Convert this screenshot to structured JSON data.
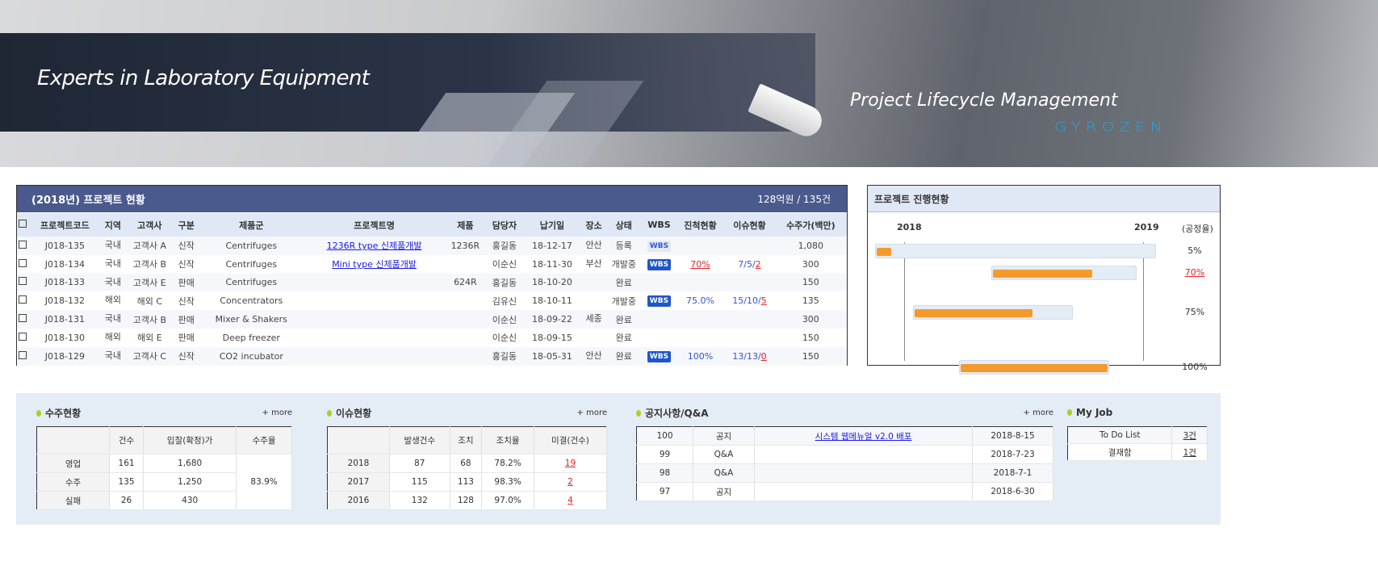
{
  "banner": {
    "slogan": "Experts in Laboratory Equipment",
    "product": "Project Lifecycle Management",
    "logo": "GYROZEN"
  },
  "projects": {
    "title": "(2018년) 프로젝트 현황",
    "summary": "128억원 / 135건",
    "columns": [
      "프로젝트코드",
      "지역",
      "고객사",
      "구분",
      "제품군",
      "프로젝트명",
      "제품",
      "담당자",
      "납기일",
      "장소",
      "상태",
      "WBS",
      "진척현황",
      "이슈현황",
      "수주가(백만)"
    ],
    "rows": [
      {
        "code": "J018-135",
        "region": "국내",
        "client": "고객사 A",
        "type": "신작",
        "group": "Centrifuges",
        "name": "1236R type 신제품개발",
        "product": "1236R",
        "owner": "홍길동",
        "due": "18-12-17",
        "place": "안산",
        "status": "등록",
        "wbs": "WBS",
        "wbs_active": false,
        "progress": "",
        "issues": "",
        "issues_open": "",
        "price": "1,080"
      },
      {
        "code": "J018-134",
        "region": "국내",
        "client": "고객사 B",
        "type": "신작",
        "group": "Centrifuges",
        "name": "Mini type 신제품개발",
        "product": "",
        "owner": "이순신",
        "due": "18-11-30",
        "place": "부산",
        "status": "개발중",
        "wbs": "WBS",
        "wbs_active": true,
        "progress": "70%",
        "issues": "7/5/",
        "issues_open": "2",
        "price": "300"
      },
      {
        "code": "J018-133",
        "region": "국내",
        "client": "고객사 E",
        "type": "판매",
        "group": "Centrifuges",
        "name": "",
        "product": "624R",
        "owner": "홍길동",
        "due": "18-10-20",
        "place": "",
        "status": "완료",
        "wbs": "",
        "wbs_active": false,
        "progress": "",
        "issues": "",
        "issues_open": "",
        "price": "150"
      },
      {
        "code": "J018-132",
        "region": "해외",
        "client": "해외 C",
        "type": "신작",
        "group": "Concentrators",
        "name": "",
        "product": "",
        "owner": "김유신",
        "due": "18-10-11",
        "place": "",
        "status": "개발중",
        "wbs": "WBS",
        "wbs_active": true,
        "progress": "75.0%",
        "issues": "15/10/",
        "issues_open": "5",
        "price": "135"
      },
      {
        "code": "J018-131",
        "region": "국내",
        "client": "고객사 B",
        "type": "판매",
        "group": "Mixer & Shakers",
        "name": "",
        "product": "",
        "owner": "이순신",
        "due": "18-09-22",
        "place": "세종",
        "status": "완료",
        "wbs": "",
        "wbs_active": false,
        "progress": "",
        "issues": "",
        "issues_open": "",
        "price": "300"
      },
      {
        "code": "J018-130",
        "region": "해외",
        "client": "해외 E",
        "type": "판매",
        "group": "Deep freezer",
        "name": "",
        "product": "",
        "owner": "이순신",
        "due": "18-09-15",
        "place": "",
        "status": "완료",
        "wbs": "",
        "wbs_active": false,
        "progress": "",
        "issues": "",
        "issues_open": "",
        "price": "150"
      },
      {
        "code": "J018-129",
        "region": "국내",
        "client": "고객사 C",
        "type": "신작",
        "group": "CO2 incubator",
        "name": "",
        "product": "",
        "owner": "홍길동",
        "due": "18-05-31",
        "place": "안산",
        "status": "완료",
        "wbs": "WBS",
        "wbs_active": true,
        "progress": "100%",
        "issues": "13/13/",
        "issues_open": "0",
        "price": "150"
      }
    ]
  },
  "gantt": {
    "title": "프로젝트 진행현황",
    "year_start": "2018",
    "year_end": "2019",
    "rate_label": "(공정율)",
    "bars": [
      {
        "row": 0,
        "start": "2017-11-18",
        "end": "2019-01-21",
        "progress": 5,
        "label": "5%",
        "alert": false
      },
      {
        "row": 1,
        "start": "2018-05-14",
        "end": "2018-12-22",
        "progress": 70,
        "label": "70%",
        "alert": true
      },
      {
        "row": 3,
        "start": "2018-01-15",
        "end": "2018-09-16",
        "progress": 75,
        "label": "75%",
        "alert": false
      },
      {
        "row": 6,
        "start": "2018-03-26",
        "end": "2018-11-10",
        "progress": 100,
        "label": "100%",
        "alert": false
      }
    ],
    "colors": {
      "fill": "#f39a2c",
      "track": "#e4ecf5"
    }
  },
  "orders": {
    "title": "수주현황",
    "more": "+ more",
    "columns": [
      "",
      "건수",
      "입찰(확정)가",
      "수주율"
    ],
    "rows": [
      [
        "영업",
        "161",
        "1,680"
      ],
      [
        "수주",
        "135",
        "1,250"
      ],
      [
        "실패",
        "26",
        "430"
      ]
    ],
    "rate": "83.9%"
  },
  "issues": {
    "title": "이슈현황",
    "more": "+ more",
    "columns": [
      "",
      "발생건수",
      "조치",
      "조치율",
      "미결(건수)"
    ],
    "rows": [
      [
        "2018",
        "87",
        "68",
        "78.2%",
        "19"
      ],
      [
        "2017",
        "115",
        "113",
        "98.3%",
        "2"
      ],
      [
        "2016",
        "132",
        "128",
        "97.0%",
        "4"
      ]
    ]
  },
  "notices": {
    "title": "공지사항/Q&A",
    "more": "+ more",
    "rows": [
      [
        "100",
        "공지",
        "시스템 웹메뉴얼 v2.0 배포",
        "2018-8-15"
      ],
      [
        "99",
        "Q&A",
        "",
        "2018-7-23"
      ],
      [
        "98",
        "Q&A",
        "",
        "2018-7-1"
      ],
      [
        "97",
        "공지",
        "",
        "2018-6-30"
      ]
    ]
  },
  "myjob": {
    "title": "My Job",
    "rows": [
      [
        "To Do List",
        "3건"
      ],
      [
        "결재함",
        "1건"
      ]
    ]
  }
}
